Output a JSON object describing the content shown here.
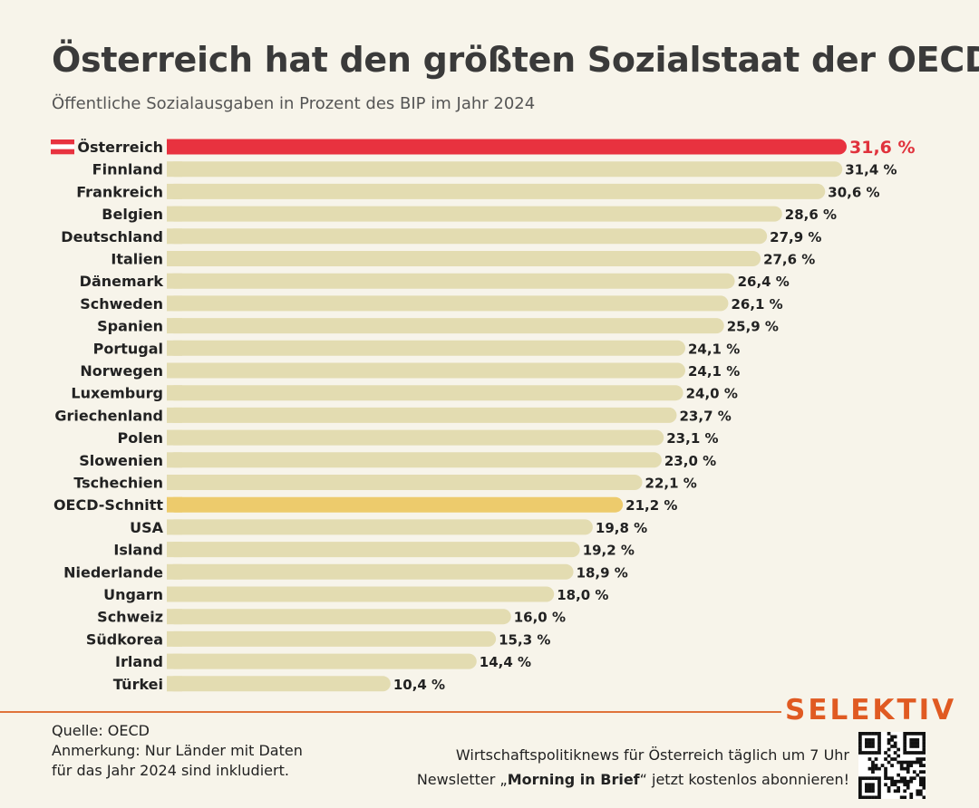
{
  "header": {
    "title": "Österreich hat den größten Sozialstaat der OECD",
    "subtitle": "Öffentliche Sozialausgaben in Prozent des BIP im Jahr 2024"
  },
  "chart_data": {
    "type": "bar",
    "orientation": "horizontal",
    "title": "Österreich hat den größten Sozialstaat der OECD",
    "subtitle": "Öffentliche Sozialausgaben in Prozent des BIP im Jahr 2024",
    "unit": "%",
    "xlim": [
      0,
      31.6
    ],
    "grid": false,
    "colors": {
      "highlight": "#e8323f",
      "average": "#edcb6c",
      "default": "#e3dcb1"
    },
    "categories": [
      "Österreich",
      "Finnland",
      "Frankreich",
      "Belgien",
      "Deutschland",
      "Italien",
      "Dänemark",
      "Schweden",
      "Spanien",
      "Portugal",
      "Norwegen",
      "Luxemburg",
      "Griechenland",
      "Polen",
      "Slowenien",
      "Tschechien",
      "OECD-Schnitt",
      "USA",
      "Island",
      "Niederlande",
      "Ungarn",
      "Schweiz",
      "Südkorea",
      "Irland",
      "Türkei"
    ],
    "values": [
      31.6,
      31.4,
      30.6,
      28.6,
      27.9,
      27.6,
      26.4,
      26.1,
      25.9,
      24.1,
      24.1,
      24.0,
      23.7,
      23.1,
      23.0,
      22.1,
      21.2,
      19.8,
      19.2,
      18.9,
      18.0,
      16.0,
      15.3,
      14.4,
      10.4
    ],
    "value_labels": [
      "31,6 %",
      "31,4 %",
      "30,6 %",
      "28,6 %",
      "27,9 %",
      "27,6 %",
      "26,4 %",
      "26,1 %",
      "25,9 %",
      "24,1 %",
      "24,1 %",
      "24,0 %",
      "23,7 %",
      "23,1 %",
      "23,0 %",
      "22,1 %",
      "21,2 %",
      "19,8 %",
      "19,2 %",
      "18,9 %",
      "18,0 %",
      "16,0 %",
      "15,3 %",
      "14,4 %",
      "10,4 %"
    ],
    "highlight": "Österreich",
    "average": "OECD-Schnitt"
  },
  "footer": {
    "brand": "SELEKTIV",
    "source": "Quelle: OECD",
    "note_line1": "Anmerkung: Nur Länder mit Daten",
    "note_line2": "für das Jahr 2024 sind inkludiert.",
    "promo_line1": "Wirtschaftspolitiknews für Österreich täglich um 7 Uhr",
    "promo_prefix": "Newsletter „",
    "promo_bold": "Morning in Brief",
    "promo_suffix": "“ jetzt kostenlos abonnieren!",
    "qr_icon": "qr-code-icon"
  }
}
